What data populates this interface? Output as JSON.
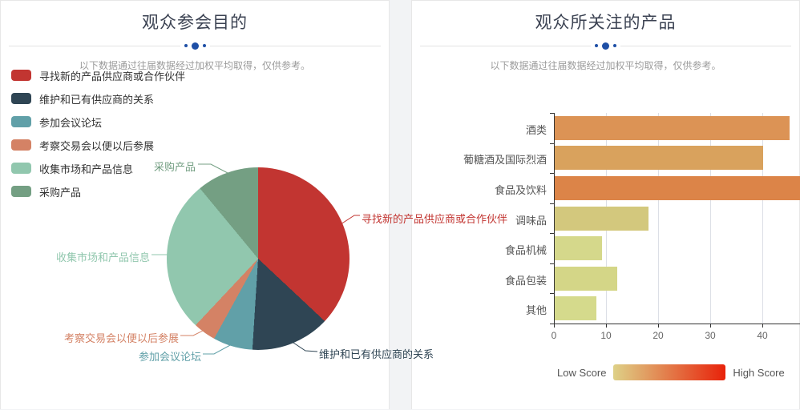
{
  "page": {
    "title_color": "#3b4252",
    "accent_dot_color": "#1e4fa6"
  },
  "left_panel": {
    "title": "观众参会目的",
    "subtitle": "以下数据通过往届数据经过加权平均取得，仅供参考。"
  },
  "right_panel": {
    "title": "观众所关注的产品",
    "subtitle": "以下数据通过往届数据经过加权平均取得，仅供参考。"
  },
  "visual_map": {
    "low_label": "Low Score",
    "high_label": "High Score",
    "gradient_start": "#ded187",
    "gradient_end": "#e8220a"
  },
  "chart_data": [
    {
      "type": "pie",
      "title": "观众参会目的",
      "legend_position": "top-left-vertical",
      "unit": "percent",
      "slices": [
        {
          "label": "寻找新的产品供应商或合作伙伴",
          "value": 37,
          "color": "#c23531"
        },
        {
          "label": "维护和已有供应商的关系",
          "value": 14,
          "color": "#2f4554"
        },
        {
          "label": "参加会议论坛",
          "value": 7,
          "color": "#61a0a8"
        },
        {
          "label": "考察交易会以便以后参展",
          "value": 4,
          "color": "#d48265"
        },
        {
          "label": "收集市场和产品信息",
          "value": 27,
          "color": "#91c7ae"
        },
        {
          "label": "采购产品",
          "value": 11,
          "color": "#749f83"
        }
      ]
    },
    {
      "type": "bar",
      "orientation": "horizontal",
      "title": "观众所关注的产品",
      "categories": [
        "酒类",
        "葡糖酒及国际烈酒",
        "食品及饮料",
        "调味品",
        "食品机械",
        "食品包装",
        "其他"
      ],
      "values": [
        45,
        40,
        47,
        18,
        9,
        12,
        8
      ],
      "bar_colors": [
        "#dc9355",
        "#d9a25d",
        "#dc8448",
        "#d3c87d",
        "#d5d88b",
        "#d4d687",
        "#d5da8c"
      ],
      "xlim": [
        0,
        47.4
      ],
      "x_ticks": [
        0,
        10,
        20,
        30,
        40
      ],
      "grid": true,
      "legend": "visualMap gradient Low Score -> High Score"
    }
  ]
}
